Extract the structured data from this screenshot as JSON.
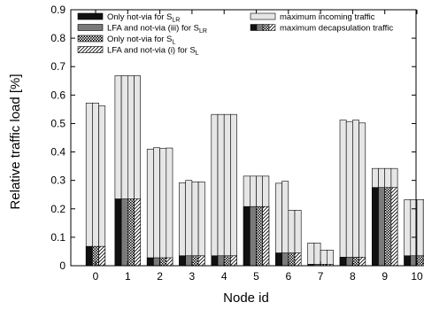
{
  "chart_data": {
    "type": "bar",
    "xlabel": "Node id",
    "ylabel": "Relative traffic load [%]",
    "ylim": [
      0,
      0.9
    ],
    "yticks": [
      "0",
      "0.1",
      "0.2",
      "0.3",
      "0.4",
      "0.5",
      "0.6",
      "0.7",
      "0.8",
      "0.9"
    ],
    "categories": [
      "0",
      "1",
      "2",
      "3",
      "4",
      "5",
      "6",
      "7",
      "8",
      "9",
      "10"
    ],
    "grid": false,
    "legend_position": "top",
    "legend": {
      "left": [
        {
          "key": "only_notvia_slr",
          "text": "Only not-via for S",
          "sub": "LR",
          "swatch": "solid-black"
        },
        {
          "key": "lfa_notvia_iii_slr",
          "text": "LFA and not-via (iii) for S",
          "sub": "LR",
          "swatch": "solid-gray"
        },
        {
          "key": "only_notvia_sl",
          "text": "Only not-via for S",
          "sub": "L",
          "swatch": "checker"
        },
        {
          "key": "lfa_notvia_i_sl",
          "text": "LFA and not-via (i) for S",
          "sub": "L",
          "swatch": "diagonal"
        }
      ],
      "right": [
        {
          "key": "max_incoming",
          "text": "maximum incoming traffic",
          "sub": "",
          "swatch": "light"
        },
        {
          "key": "max_decap",
          "text": "maximum decapsulation traffic",
          "sub": "",
          "swatch": "composite"
        }
      ]
    },
    "series_order": [
      "Only not-via for S_LR",
      "LFA and not-via (iii) for S_LR",
      "Only not-via for S_L",
      "LFA and not-via (i) for S_L"
    ],
    "patterns": [
      "solid-black",
      "solid-gray",
      "checker",
      "diagonal"
    ],
    "incoming": [
      [
        0.572,
        0.572,
        0.562
      ],
      [
        0.668,
        0.668,
        0.668,
        0.668
      ],
      [
        0.41,
        0.415,
        0.412,
        0.414
      ],
      [
        0.292,
        0.3,
        0.295,
        0.295
      ],
      [
        0.532,
        0.532,
        0.532,
        0.532
      ],
      [
        0.315,
        0.315,
        0.315,
        0.315
      ],
      [
        0.29,
        0.297,
        0.195,
        0.195
      ],
      [
        0.08,
        0.08,
        0.055,
        0.055
      ],
      [
        0.512,
        0.507,
        0.512,
        0.502
      ],
      [
        0.342,
        0.342,
        0.342,
        0.342
      ],
      [
        0.232,
        0.232,
        0.232,
        0.232
      ]
    ],
    "decapsulation": [
      [
        0.068,
        0.068,
        0.068
      ],
      [
        0.235,
        0.235,
        0.235,
        0.235
      ],
      [
        0.028,
        0.028,
        0.028,
        0.028
      ],
      [
        0.035,
        0.035,
        0.035,
        0.035
      ],
      [
        0.035,
        0.035,
        0.035,
        0.035
      ],
      [
        0.208,
        0.208,
        0.208,
        0.208
      ],
      [
        0.045,
        0.045,
        0.045,
        0.045
      ],
      [
        0.005,
        0.005,
        0.005,
        0.005
      ],
      [
        0.03,
        0.03,
        0.03,
        0.03
      ],
      [
        0.275,
        0.275,
        0.275,
        0.275
      ],
      [
        0.035,
        0.035,
        0.035,
        0.035
      ]
    ],
    "bar_patterns": [
      [
        "solid-black",
        "checker",
        "diagonal"
      ],
      [
        "solid-black",
        "solid-gray",
        "checker",
        "diagonal"
      ],
      [
        "solid-black",
        "solid-gray",
        "checker",
        "diagonal"
      ],
      [
        "solid-black",
        "solid-gray",
        "checker",
        "diagonal"
      ],
      [
        "solid-black",
        "solid-gray",
        "checker",
        "diagonal"
      ],
      [
        "solid-black",
        "solid-gray",
        "checker",
        "diagonal"
      ],
      [
        "solid-black",
        "solid-gray",
        "checker",
        "diagonal"
      ],
      [
        "solid-black",
        "solid-gray",
        "checker",
        "diagonal"
      ],
      [
        "solid-black",
        "solid-gray",
        "checker",
        "diagonal"
      ],
      [
        "solid-black",
        "solid-gray",
        "checker",
        "diagonal"
      ],
      [
        "solid-black",
        "solid-gray",
        "checker",
        "diagonal"
      ]
    ],
    "colors": {
      "incoming_fill": "#e6e6e6",
      "solid_black": "#111111",
      "solid_gray": "#7a7a7a",
      "edge": "#000000"
    }
  }
}
